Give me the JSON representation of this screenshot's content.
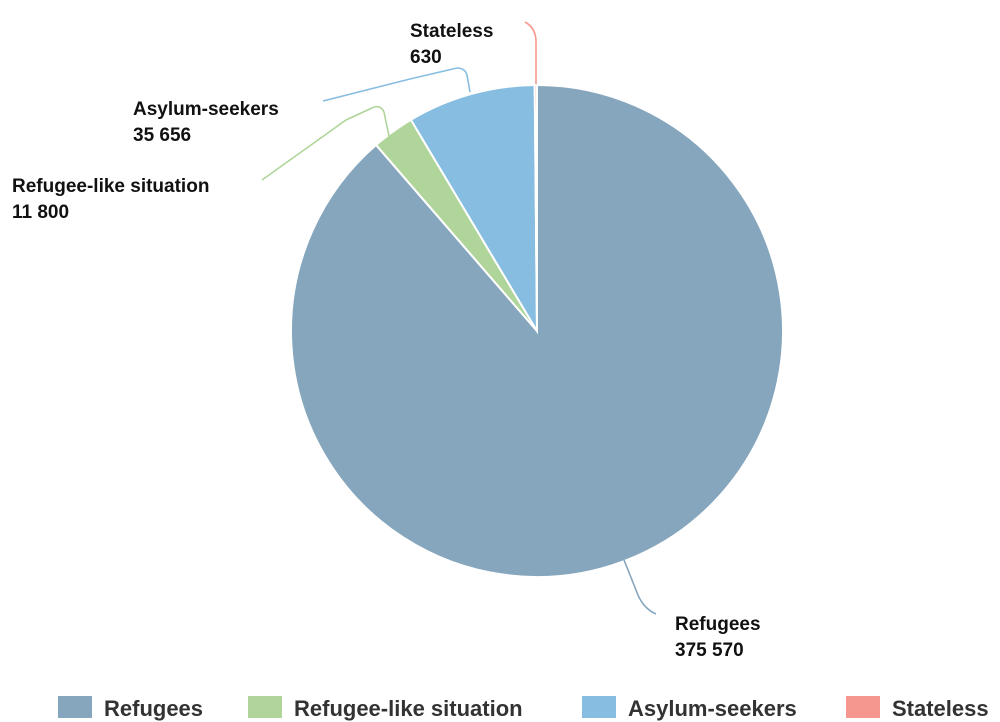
{
  "chart_data": {
    "type": "pie",
    "legend_position": "bottom",
    "slices": [
      {
        "name": "Refugees",
        "display_value": "375 570",
        "value": 375570,
        "color": "#86a6bd"
      },
      {
        "name": "Refugee-like situation",
        "display_value": "11 800",
        "value": 11800,
        "color": "#b0d59b"
      },
      {
        "name": "Asylum-seekers",
        "display_value": "35 656",
        "value": 35656,
        "color": "#86bde0"
      },
      {
        "name": "Stateless",
        "display_value": "630",
        "value": 630,
        "color": "#f5978e"
      }
    ]
  }
}
